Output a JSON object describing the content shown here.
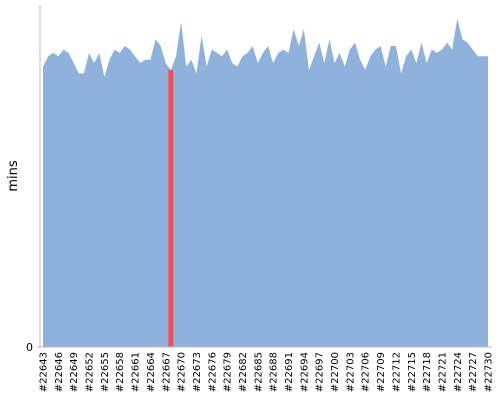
{
  "chart_data": {
    "type": "area",
    "y_label": "mins",
    "categories": [
      "#22643",
      null,
      null,
      "#22646",
      null,
      null,
      "#22649",
      null,
      null,
      "#22652",
      null,
      null,
      "#22655",
      null,
      null,
      "#22658",
      null,
      null,
      "#22661",
      null,
      null,
      "#22664",
      null,
      null,
      "#22667",
      null,
      null,
      "#22670",
      null,
      null,
      "#22673",
      null,
      null,
      "#22676",
      null,
      null,
      "#22679",
      null,
      null,
      "#22682",
      null,
      null,
      "#22685",
      null,
      null,
      "#22688",
      null,
      null,
      "#22691",
      null,
      null,
      "#22694",
      null,
      null,
      "#22697",
      null,
      null,
      "#22700",
      null,
      null,
      "#22703",
      null,
      null,
      "#22706",
      null,
      null,
      "#22709",
      null,
      null,
      "#22712",
      null,
      null,
      "#22715",
      null,
      null,
      "#22718",
      null,
      null,
      "#22721",
      null,
      null,
      "#22724",
      null,
      null,
      "#22727",
      null,
      null,
      "#22730"
    ],
    "values": [
      82,
      85,
      86,
      85,
      87,
      86,
      83,
      80,
      80,
      86,
      83,
      86,
      79,
      84,
      87,
      86,
      88,
      87,
      85,
      83,
      84,
      84,
      90,
      88,
      83,
      81,
      85,
      95,
      82,
      84,
      80,
      91,
      82,
      87,
      86,
      85,
      87,
      83,
      82,
      85,
      86,
      88,
      83,
      86,
      88,
      83,
      86,
      87,
      86,
      93,
      88,
      93,
      81,
      85,
      89,
      83,
      90,
      83,
      86,
      82,
      87,
      89,
      84,
      81,
      85,
      87,
      88,
      82,
      88,
      88,
      80,
      85,
      87,
      83,
      89,
      83,
      87,
      86,
      87,
      89,
      87,
      96,
      90,
      89,
      87,
      85,
      85,
      85
    ],
    "color": "#8fb2dc",
    "highlight_index": 25,
    "highlight_color": "#f0514f",
    "ylim": [
      0,
      100
    ],
    "yticks": [
      0
    ]
  }
}
